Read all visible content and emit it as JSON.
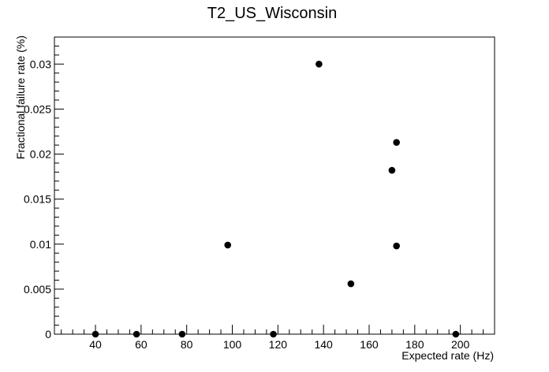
{
  "chart_data": {
    "type": "scatter",
    "title": "T2_US_Wisconsin",
    "xlabel": "Expected rate (Hz)",
    "ylabel": "Fractional failure rate (%)",
    "xlim": [
      22,
      215
    ],
    "ylim": [
      0,
      0.033
    ],
    "x_ticks": [
      40,
      60,
      80,
      100,
      120,
      140,
      160,
      180,
      200
    ],
    "x_tick_labels": [
      "40",
      "60",
      "80",
      "100",
      "120",
      "140",
      "160",
      "180",
      "200"
    ],
    "y_ticks": [
      0,
      0.005,
      0.01,
      0.015,
      0.02,
      0.025,
      0.03
    ],
    "y_tick_labels": [
      "0",
      "0.005",
      "0.01",
      "0.015",
      "0.02",
      "0.025",
      "0.03"
    ],
    "grid": false,
    "legend": "none",
    "marker_color": "#000000",
    "series": [
      {
        "x": [
          40,
          58,
          78,
          98,
          118,
          138,
          152,
          170,
          172,
          172,
          198
        ],
        "y": [
          0,
          0,
          0,
          0.0099,
          0,
          0.03,
          0.0056,
          0.0182,
          0.0213,
          0.0098,
          0
        ]
      }
    ]
  }
}
